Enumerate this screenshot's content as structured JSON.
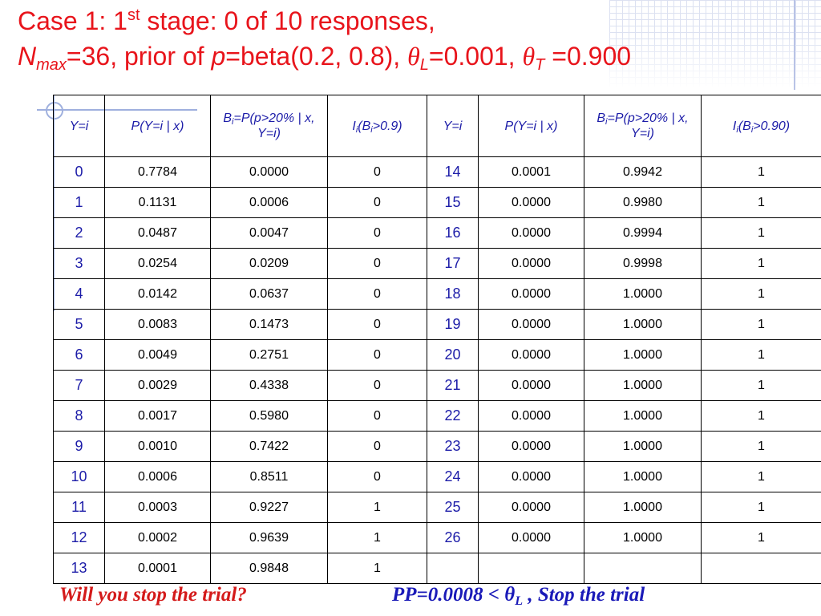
{
  "title": {
    "line1_prefix": "Case 1: 1",
    "line1_sup": "st",
    "line1_suffix": " stage: 0 of 10 responses,",
    "n_symbol": "N",
    "n_sub": "max",
    "line2_a": "=36, prior of ",
    "p_symbol": "p",
    "line2_b": "=beta(0.2, 0.8), ",
    "theta": "θ",
    "theta_l_sub": "L",
    "line2_c": "=0.001, ",
    "theta_t_sub": "T",
    "line2_d": " =0.900"
  },
  "table": {
    "headers": {
      "y": "Y=i",
      "p": "P(Y=i | x)",
      "b_prefix": "B",
      "b_sub": "i",
      "b_suffix": "=P(p>20% | x, Y=i)",
      "i_left_prefix": "I",
      "i_left_sub": "i",
      "i_left_mid": "(B",
      "i_left_suffix": ">0.9)",
      "i_right_suffix": ">0.90)"
    },
    "left_rows": [
      {
        "y": "0",
        "p": "0.7784",
        "b": "0.0000",
        "i": "0"
      },
      {
        "y": "1",
        "p": "0.1131",
        "b": "0.0006",
        "i": "0"
      },
      {
        "y": "2",
        "p": "0.0487",
        "b": "0.0047",
        "i": "0"
      },
      {
        "y": "3",
        "p": "0.0254",
        "b": "0.0209",
        "i": "0"
      },
      {
        "y": "4",
        "p": "0.0142",
        "b": "0.0637",
        "i": "0"
      },
      {
        "y": "5",
        "p": "0.0083",
        "b": "0.1473",
        "i": "0"
      },
      {
        "y": "6",
        "p": "0.0049",
        "b": "0.2751",
        "i": "0"
      },
      {
        "y": "7",
        "p": "0.0029",
        "b": "0.4338",
        "i": "0"
      },
      {
        "y": "8",
        "p": "0.0017",
        "b": "0.5980",
        "i": "0"
      },
      {
        "y": "9",
        "p": "0.0010",
        "b": "0.7422",
        "i": "0"
      },
      {
        "y": "10",
        "p": "0.0006",
        "b": "0.8511",
        "i": "0"
      },
      {
        "y": "11",
        "p": "0.0003",
        "b": "0.9227",
        "i": "1"
      },
      {
        "y": "12",
        "p": "0.0002",
        "b": "0.9639",
        "i": "1"
      },
      {
        "y": "13",
        "p": "0.0001",
        "b": "0.9848",
        "i": "1"
      }
    ],
    "right_rows": [
      {
        "y": "14",
        "p": "0.0001",
        "b": "0.9942",
        "i": "1"
      },
      {
        "y": "15",
        "p": "0.0000",
        "b": "0.9980",
        "i": "1"
      },
      {
        "y": "16",
        "p": "0.0000",
        "b": "0.9994",
        "i": "1"
      },
      {
        "y": "17",
        "p": "0.0000",
        "b": "0.9998",
        "i": "1"
      },
      {
        "y": "18",
        "p": "0.0000",
        "b": "1.0000",
        "i": "1"
      },
      {
        "y": "19",
        "p": "0.0000",
        "b": "1.0000",
        "i": "1"
      },
      {
        "y": "20",
        "p": "0.0000",
        "b": "1.0000",
        "i": "1"
      },
      {
        "y": "21",
        "p": "0.0000",
        "b": "1.0000",
        "i": "1"
      },
      {
        "y": "22",
        "p": "0.0000",
        "b": "1.0000",
        "i": "1"
      },
      {
        "y": "23",
        "p": "0.0000",
        "b": "1.0000",
        "i": "1"
      },
      {
        "y": "24",
        "p": "0.0000",
        "b": "1.0000",
        "i": "1"
      },
      {
        "y": "25",
        "p": "0.0000",
        "b": "1.0000",
        "i": "1"
      },
      {
        "y": "26",
        "p": "0.0000",
        "b": "1.0000",
        "i": "1"
      },
      {
        "y": "",
        "p": "",
        "b": "",
        "i": ""
      }
    ]
  },
  "footer": {
    "question": "Will you stop the trial?",
    "pp_prefix": "PP=0.0008 < ",
    "theta": "θ",
    "theta_sub": "L",
    "pp_suffix": " ,  Stop the trial"
  },
  "colors": {
    "title": "#e8141b",
    "header_text": "#1c1ca8",
    "question": "#d41a1a",
    "conclusion": "#1a1ab8"
  }
}
